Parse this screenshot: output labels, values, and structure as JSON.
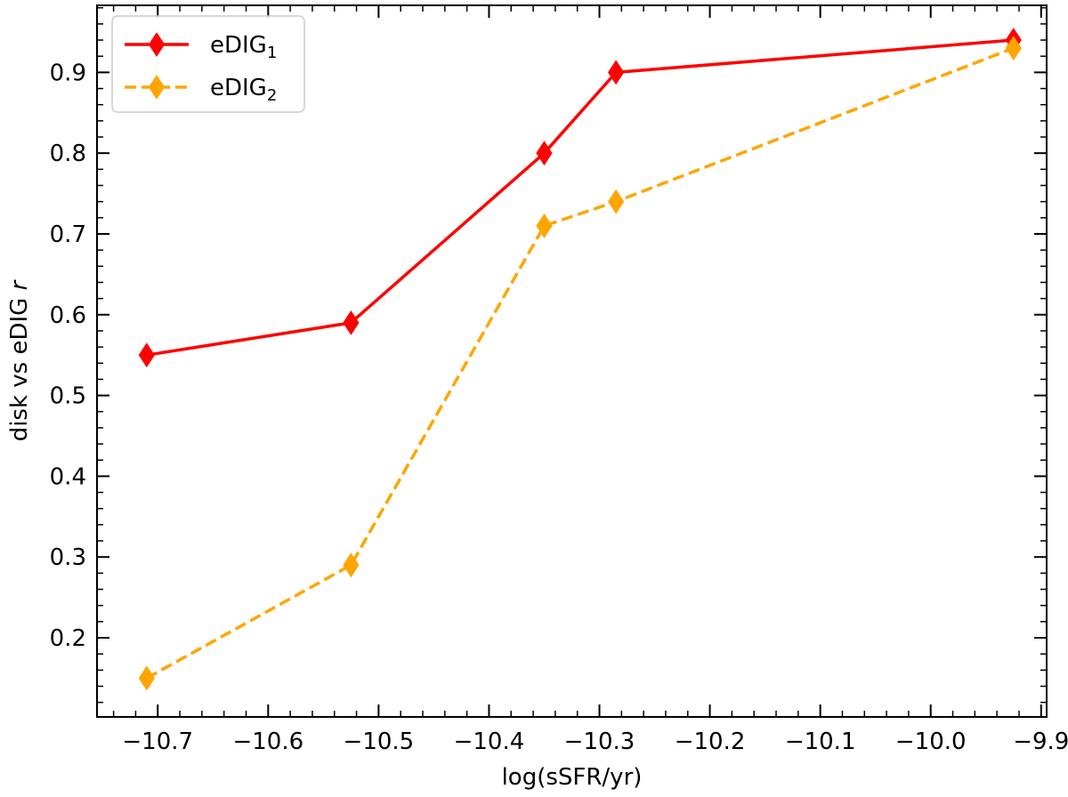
{
  "chart_data": {
    "type": "line",
    "xlabel": "log(sSFR/yr)",
    "ylabel_main": "disk vs eDIG ",
    "ylabel_italic": "r",
    "xlim": [
      -10.755,
      -9.895
    ],
    "ylim": [
      0.102,
      0.983
    ],
    "x_ticks": [
      -10.7,
      -10.6,
      -10.5,
      -10.4,
      -10.3,
      -10.2,
      -10.1,
      -10.0,
      -9.9
    ],
    "x_tick_labels": [
      "−10.7",
      "−10.6",
      "−10.5",
      "−10.4",
      "−10.3",
      "−10.2",
      "−10.1",
      "−10.0",
      "−9.9"
    ],
    "y_ticks": [
      0.2,
      0.3,
      0.4,
      0.5,
      0.6,
      0.7,
      0.8,
      0.9
    ],
    "y_tick_labels": [
      "0.2",
      "0.3",
      "0.4",
      "0.5",
      "0.6",
      "0.7",
      "0.8",
      "0.9"
    ],
    "legend_position": "top-left",
    "series": [
      {
        "name": "eDIG",
        "subscript": "1",
        "color": "#ff0000",
        "line_style": "solid",
        "marker": "thin-diamond",
        "x": [
          -10.71,
          -10.525,
          -10.35,
          -10.285,
          -9.925
        ],
        "y": [
          0.55,
          0.59,
          0.8,
          0.9,
          0.94
        ]
      },
      {
        "name": "eDIG",
        "subscript": "2",
        "color": "#ffa500",
        "line_style": "dashed",
        "marker": "thin-diamond",
        "x": [
          -10.71,
          -10.525,
          -10.35,
          -10.285,
          -9.925
        ],
        "y": [
          0.15,
          0.29,
          0.71,
          0.74,
          0.93
        ]
      }
    ]
  }
}
